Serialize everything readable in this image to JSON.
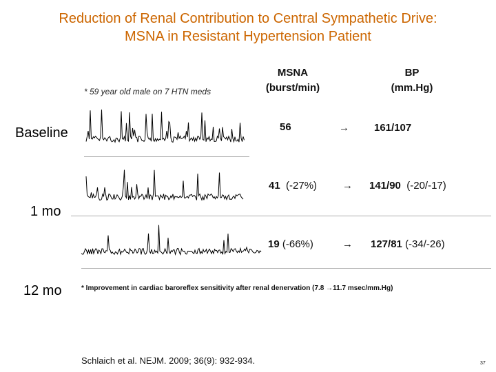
{
  "slide": {
    "title_line1": "Reduction of Renal Contribution to Central Sympathetic Drive:",
    "title_line2": "MSNA in Resistant Hypertension Patient",
    "patient_note": "* 59 year old male on 7 HTN meds",
    "col_msna_line1": "MSNA",
    "col_msna_line2": "(burst/min)",
    "col_bp_line1": "BP",
    "col_bp_line2": "(mm.Hg)",
    "arrow_glyph": "→",
    "rows": [
      {
        "label": "Baseline",
        "msna": "56",
        "msna_change": "",
        "bp": "161/107",
        "bp_change": ""
      },
      {
        "label": "1 mo",
        "msna": "41",
        "msna_change": "(-27%)",
        "bp": "141/90",
        "bp_change": "(-20/-17)"
      },
      {
        "label": "12 mo",
        "msna": "19",
        "msna_change": "(-66%)",
        "bp": "127/81",
        "bp_change": "(-34/-26)"
      }
    ],
    "footnote_prefix": "* Improvement in cardiac baroreflex sensitivity after renal denervation (7.8 ",
    "footnote_suffix": "11.7 msec/mm.Hg)",
    "citation": "Schlaich et al. NEJM. 2009; 36(9): 932-934.",
    "page_number": "37"
  }
}
